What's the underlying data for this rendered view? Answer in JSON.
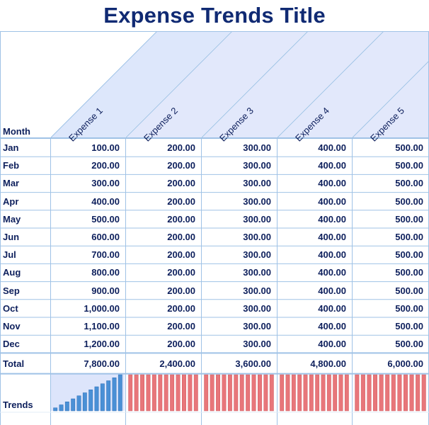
{
  "title": "Expense Trends Title",
  "month_header": "Month",
  "expense_headers": [
    "Expense 1",
    "Expense 2",
    "Expense 3",
    "Expense 4",
    "Expense 5"
  ],
  "rows": [
    {
      "month": "Jan",
      "values": [
        "100.00",
        "200.00",
        "300.00",
        "400.00",
        "500.00"
      ]
    },
    {
      "month": "Feb",
      "values": [
        "200.00",
        "200.00",
        "300.00",
        "400.00",
        "500.00"
      ]
    },
    {
      "month": "Mar",
      "values": [
        "300.00",
        "200.00",
        "300.00",
        "400.00",
        "500.00"
      ]
    },
    {
      "month": "Apr",
      "values": [
        "400.00",
        "200.00",
        "300.00",
        "400.00",
        "500.00"
      ]
    },
    {
      "month": "May",
      "values": [
        "500.00",
        "200.00",
        "300.00",
        "400.00",
        "500.00"
      ]
    },
    {
      "month": "Jun",
      "values": [
        "600.00",
        "200.00",
        "300.00",
        "400.00",
        "500.00"
      ]
    },
    {
      "month": "Jul",
      "values": [
        "700.00",
        "200.00",
        "300.00",
        "400.00",
        "500.00"
      ]
    },
    {
      "month": "Aug",
      "values": [
        "800.00",
        "200.00",
        "300.00",
        "400.00",
        "500.00"
      ]
    },
    {
      "month": "Sep",
      "values": [
        "900.00",
        "200.00",
        "300.00",
        "400.00",
        "500.00"
      ]
    },
    {
      "month": "Oct",
      "values": [
        "1,000.00",
        "200.00",
        "300.00",
        "400.00",
        "500.00"
      ]
    },
    {
      "month": "Nov",
      "values": [
        "1,100.00",
        "200.00",
        "300.00",
        "400.00",
        "500.00"
      ]
    },
    {
      "month": "Dec",
      "values": [
        "1,200.00",
        "200.00",
        "300.00",
        "400.00",
        "500.00"
      ]
    }
  ],
  "total": {
    "label": "Total",
    "values": [
      "7,800.00",
      "2,400.00",
      "3,600.00",
      "4,800.00",
      "6,000.00"
    ]
  },
  "trends_label": "Trends",
  "sparklines": [
    {
      "color": "#4a90d6",
      "values": [
        100,
        200,
        300,
        400,
        500,
        600,
        700,
        800,
        900,
        1000,
        1100,
        1200
      ]
    },
    {
      "color": "#e8767a",
      "values": [
        200,
        200,
        200,
        200,
        200,
        200,
        200,
        200,
        200,
        200,
        200,
        200
      ]
    },
    {
      "color": "#e8767a",
      "values": [
        300,
        300,
        300,
        300,
        300,
        300,
        300,
        300,
        300,
        300,
        300,
        300
      ]
    },
    {
      "color": "#e8767a",
      "values": [
        400,
        400,
        400,
        400,
        400,
        400,
        400,
        400,
        400,
        400,
        400,
        400
      ]
    },
    {
      "color": "#e8767a",
      "values": [
        500,
        500,
        500,
        500,
        500,
        500,
        500,
        500,
        500,
        500,
        500,
        500
      ]
    }
  ],
  "colors": {
    "text": "#0d1f5c",
    "grid": "#9fc2e6",
    "header_band": "#dfe6fb"
  }
}
